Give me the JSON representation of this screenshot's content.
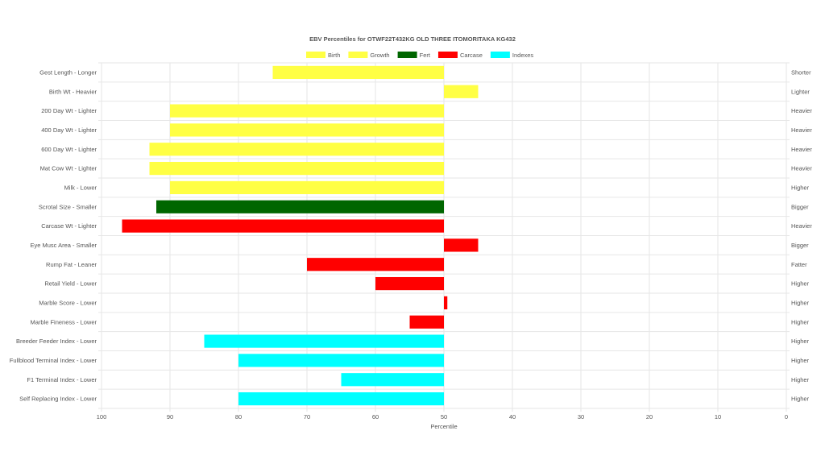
{
  "chart_data": {
    "type": "bar",
    "orientation": "horizontal",
    "title": "EBV Percentiles for OTWF22T432KG OLD THREE ITOMORITAKA KG432",
    "xlabel": "Percentile",
    "xlim": [
      100,
      0
    ],
    "x_ticks": [
      "100",
      "90",
      "80",
      "70",
      "60",
      "50",
      "40",
      "30",
      "20",
      "10",
      "0"
    ],
    "baseline": 50,
    "legend": {
      "placement": "top-center",
      "entries": [
        {
          "name": "Birth",
          "color": "#ffff44"
        },
        {
          "name": "Growth",
          "color": "#ffff44"
        },
        {
          "name": "Fert",
          "color": "#006600"
        },
        {
          "name": "Carcase",
          "color": "#ff0000"
        },
        {
          "name": "Indexes",
          "color": "#00ffff"
        }
      ]
    },
    "categories": [
      {
        "label": "Gest Length - Longer",
        "right": "Shorter",
        "value": 75,
        "group": "Birth"
      },
      {
        "label": "Birth Wt - Heavier",
        "right": "Lighter",
        "value": 45,
        "group": "Birth"
      },
      {
        "label": "200 Day Wt - Lighter",
        "right": "Heavier",
        "value": 90,
        "group": "Growth"
      },
      {
        "label": "400 Day Wt - Lighter",
        "right": "Heavier",
        "value": 90,
        "group": "Growth"
      },
      {
        "label": "600 Day Wt - Lighter",
        "right": "Heavier",
        "value": 93,
        "group": "Growth"
      },
      {
        "label": "Mat Cow Wt - Lighter",
        "right": "Heavier",
        "value": 93,
        "group": "Growth"
      },
      {
        "label": "Milk - Lower",
        "right": "Higher",
        "value": 90,
        "group": "Growth"
      },
      {
        "label": "Scrotal Size - Smaller",
        "right": "Bigger",
        "value": 92,
        "group": "Fert"
      },
      {
        "label": "Carcase Wt - Lighter",
        "right": "Heavier",
        "value": 97,
        "group": "Carcase"
      },
      {
        "label": "Eye Musc Area - Smaller",
        "right": "Bigger",
        "value": 45,
        "group": "Carcase"
      },
      {
        "label": "Rump Fat - Leaner",
        "right": "Fatter",
        "value": 70,
        "group": "Carcase"
      },
      {
        "label": "Retail Yield - Lower",
        "right": "Higher",
        "value": 60,
        "group": "Carcase"
      },
      {
        "label": "Marble Score - Lower",
        "right": "Higher",
        "value": 49.5,
        "group": "Carcase"
      },
      {
        "label": "Marble Fineness - Lower",
        "right": "Higher",
        "value": 55,
        "group": "Carcase"
      },
      {
        "label": "Breeder Feeder Index - Lower",
        "right": "Higher",
        "value": 85,
        "group": "Indexes"
      },
      {
        "label": "Fullblood Terminal Index - Lower",
        "right": "Higher",
        "value": 80,
        "group": "Indexes"
      },
      {
        "label": "F1 Terminal Index - Lower",
        "right": "Higher",
        "value": 65,
        "group": "Indexes"
      },
      {
        "label": "Self Replacing Index - Lower",
        "right": "Higher",
        "value": 80,
        "group": "Indexes"
      }
    ],
    "grid": true
  }
}
